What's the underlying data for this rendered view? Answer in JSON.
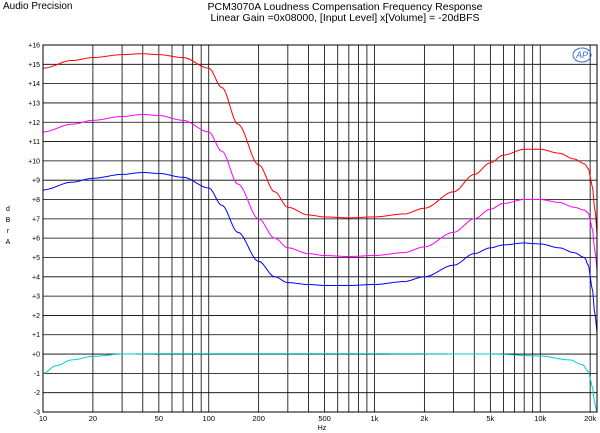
{
  "header": {
    "brand": "Audio Precision",
    "title_line1": "PCM3070A Loudness Compensation Frequency Response",
    "title_line2": "Linear Gain =0x08000, [Input Level] x[Volume] = -20dBFS"
  },
  "logo": {
    "text": "AP"
  },
  "chart_data": {
    "type": "line",
    "title": "PCM3070A Loudness Compensation Frequency Response",
    "subtitle": "Linear Gain =0x08000, [Input Level] x[Volume] = -20dBFS",
    "xlabel": "Hz",
    "ylabel": "d B r A",
    "xscale": "log",
    "xlim": [
      10,
      22000
    ],
    "ylim": [
      -3,
      16
    ],
    "grid": true,
    "x_ticks": [
      {
        "value": 10,
        "label": "10"
      },
      {
        "value": 20,
        "label": "20"
      },
      {
        "value": 50,
        "label": "50"
      },
      {
        "value": 100,
        "label": "100"
      },
      {
        "value": 200,
        "label": "200"
      },
      {
        "value": 500,
        "label": "500"
      },
      {
        "value": 1000,
        "label": "1k"
      },
      {
        "value": 2000,
        "label": "2k"
      },
      {
        "value": 5000,
        "label": "5k"
      },
      {
        "value": 10000,
        "label": "10k"
      },
      {
        "value": 20000,
        "label": "20k"
      }
    ],
    "y_ticks": [
      {
        "value": 16,
        "label": "+16"
      },
      {
        "value": 15,
        "label": "+15"
      },
      {
        "value": 14,
        "label": "+14"
      },
      {
        "value": 13,
        "label": "+13"
      },
      {
        "value": 12,
        "label": "+12"
      },
      {
        "value": 11,
        "label": "+11"
      },
      {
        "value": 10,
        "label": "+10"
      },
      {
        "value": 9,
        "label": "+9"
      },
      {
        "value": 8,
        "label": "+8"
      },
      {
        "value": 7,
        "label": "+7"
      },
      {
        "value": 6,
        "label": "+6"
      },
      {
        "value": 5,
        "label": "+5"
      },
      {
        "value": 4,
        "label": "+4"
      },
      {
        "value": 3,
        "label": "+3"
      },
      {
        "value": 2,
        "label": "+2"
      },
      {
        "value": 1,
        "label": "+1"
      },
      {
        "value": 0,
        "label": "+0"
      },
      {
        "value": -1,
        "label": "-1"
      },
      {
        "value": -2,
        "label": "-2"
      },
      {
        "value": -3,
        "label": "-3"
      }
    ],
    "series": [
      {
        "color": "#ff0000",
        "points": [
          [
            10,
            14.8
          ],
          [
            15,
            15.2
          ],
          [
            20,
            15.35
          ],
          [
            30,
            15.5
          ],
          [
            40,
            15.55
          ],
          [
            50,
            15.5
          ],
          [
            70,
            15.35
          ],
          [
            100,
            14.8
          ],
          [
            120,
            13.8
          ],
          [
            150,
            11.9
          ],
          [
            200,
            9.8
          ],
          [
            250,
            8.4
          ],
          [
            300,
            7.6
          ],
          [
            400,
            7.2
          ],
          [
            500,
            7.1
          ],
          [
            700,
            7.05
          ],
          [
            1000,
            7.1
          ],
          [
            1500,
            7.25
          ],
          [
            2000,
            7.55
          ],
          [
            3000,
            8.4
          ],
          [
            4000,
            9.3
          ],
          [
            5000,
            9.9
          ],
          [
            6000,
            10.3
          ],
          [
            8000,
            10.6
          ],
          [
            10000,
            10.6
          ],
          [
            13000,
            10.4
          ],
          [
            16000,
            10.1
          ],
          [
            18500,
            9.85
          ],
          [
            19500,
            9.6
          ],
          [
            20500,
            8.8
          ],
          [
            21500,
            7.3
          ],
          [
            22000,
            6.2
          ]
        ]
      },
      {
        "color": "#ff00ff",
        "points": [
          [
            10,
            11.5
          ],
          [
            15,
            11.9
          ],
          [
            20,
            12.1
          ],
          [
            30,
            12.3
          ],
          [
            40,
            12.4
          ],
          [
            50,
            12.35
          ],
          [
            70,
            12.1
          ],
          [
            100,
            11.5
          ],
          [
            120,
            10.5
          ],
          [
            150,
            8.8
          ],
          [
            200,
            7.0
          ],
          [
            250,
            6.0
          ],
          [
            300,
            5.5
          ],
          [
            400,
            5.2
          ],
          [
            500,
            5.1
          ],
          [
            700,
            5.05
          ],
          [
            1000,
            5.1
          ],
          [
            1500,
            5.25
          ],
          [
            2000,
            5.55
          ],
          [
            3000,
            6.3
          ],
          [
            4000,
            7.0
          ],
          [
            5000,
            7.5
          ],
          [
            6000,
            7.8
          ],
          [
            8000,
            8.0
          ],
          [
            10000,
            8.0
          ],
          [
            13000,
            7.85
          ],
          [
            16000,
            7.6
          ],
          [
            18500,
            7.45
          ],
          [
            19500,
            7.3
          ],
          [
            20500,
            6.6
          ],
          [
            21500,
            5.2
          ],
          [
            22000,
            4.3
          ]
        ]
      },
      {
        "color": "#0000ff",
        "points": [
          [
            10,
            8.5
          ],
          [
            15,
            8.9
          ],
          [
            20,
            9.1
          ],
          [
            30,
            9.3
          ],
          [
            40,
            9.4
          ],
          [
            50,
            9.35
          ],
          [
            70,
            9.15
          ],
          [
            100,
            8.6
          ],
          [
            120,
            7.7
          ],
          [
            150,
            6.3
          ],
          [
            200,
            4.8
          ],
          [
            250,
            4.0
          ],
          [
            300,
            3.7
          ],
          [
            400,
            3.6
          ],
          [
            500,
            3.55
          ],
          [
            700,
            3.55
          ],
          [
            1000,
            3.6
          ],
          [
            1500,
            3.75
          ],
          [
            2000,
            4.0
          ],
          [
            3000,
            4.6
          ],
          [
            4000,
            5.2
          ],
          [
            5000,
            5.5
          ],
          [
            6000,
            5.65
          ],
          [
            8000,
            5.75
          ],
          [
            10000,
            5.7
          ],
          [
            13000,
            5.5
          ],
          [
            16000,
            5.25
          ],
          [
            18500,
            5.0
          ],
          [
            19500,
            4.6
          ],
          [
            20500,
            3.5
          ],
          [
            21500,
            1.9
          ],
          [
            22000,
            1.1
          ]
        ]
      },
      {
        "color": "#00cccc",
        "points": [
          [
            10,
            -1.0
          ],
          [
            12,
            -0.6
          ],
          [
            15,
            -0.3
          ],
          [
            20,
            -0.12
          ],
          [
            30,
            0.0
          ],
          [
            50,
            0.02
          ],
          [
            100,
            0.02
          ],
          [
            1000,
            0.02
          ],
          [
            5000,
            0.0
          ],
          [
            10000,
            -0.1
          ],
          [
            15000,
            -0.3
          ],
          [
            18000,
            -0.55
          ],
          [
            19500,
            -0.9
          ],
          [
            20500,
            -1.6
          ],
          [
            21500,
            -2.7
          ],
          [
            22000,
            -3.0
          ]
        ]
      }
    ]
  }
}
